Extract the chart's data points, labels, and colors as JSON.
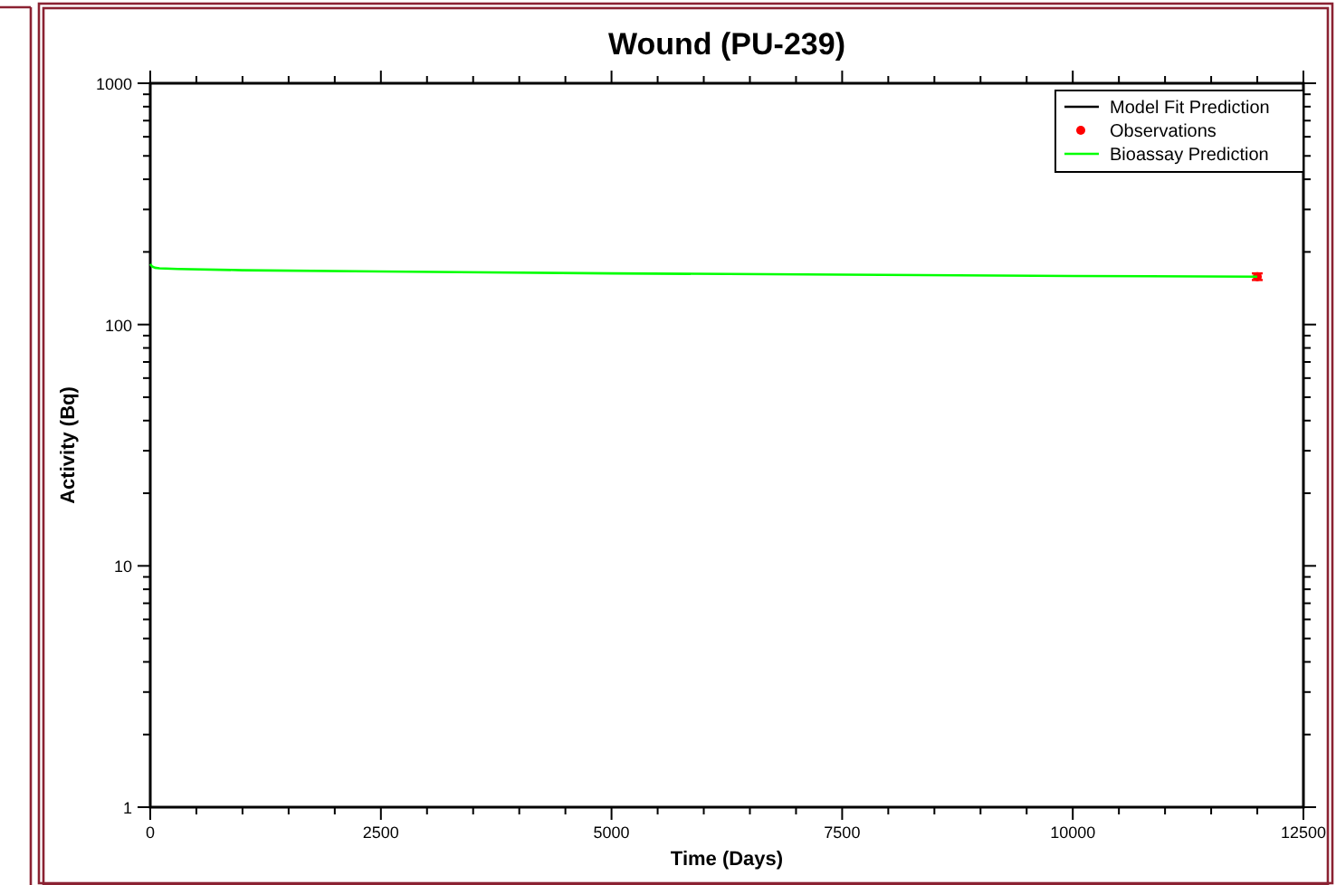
{
  "chart_data": {
    "type": "line",
    "title": "Wound  (PU-239)",
    "xlabel": "Time (Days)",
    "ylabel": "Activity (Bq)",
    "log": "y",
    "grid": false,
    "legend": "top right",
    "xlim": [
      0,
      12500
    ],
    "ylim": [
      1,
      1000
    ],
    "xticks": [
      0,
      {
        "value": 500,
        "label": null
      },
      {
        "value": 1000,
        "label": null
      },
      {
        "value": 1500,
        "label": null
      },
      {
        "value": 2000,
        "label": null
      },
      2500,
      {
        "value": 3000,
        "label": null
      },
      {
        "value": 3500,
        "label": null
      },
      {
        "value": 4000,
        "label": null
      },
      {
        "value": 4500,
        "label": null
      },
      5000,
      {
        "value": 5500,
        "label": null
      },
      {
        "value": 6000,
        "label": null
      },
      {
        "value": 6500,
        "label": null
      },
      {
        "value": 7000,
        "label": null
      },
      7500,
      {
        "value": 8000,
        "label": null
      },
      {
        "value": 8500,
        "label": null
      },
      {
        "value": 9000,
        "label": null
      },
      {
        "value": 9500,
        "label": null
      },
      10000,
      {
        "value": 10500,
        "label": null
      },
      {
        "value": 11000,
        "label": null
      },
      {
        "value": 11500,
        "label": null
      },
      {
        "value": 12000,
        "label": null
      },
      12500
    ],
    "yticks": [
      1,
      {
        "value": 2,
        "label": null
      },
      {
        "value": 3,
        "label": null
      },
      {
        "value": 4,
        "label": null
      },
      {
        "value": 5,
        "label": null
      },
      {
        "value": 6,
        "label": null
      },
      {
        "value": 7,
        "label": null
      },
      {
        "value": 8,
        "label": null
      },
      {
        "value": 9,
        "label": null
      },
      10,
      {
        "value": 20,
        "label": null
      },
      {
        "value": 30,
        "label": null
      },
      {
        "value": 40,
        "label": null
      },
      {
        "value": 50,
        "label": null
      },
      {
        "value": 60,
        "label": null
      },
      {
        "value": 70,
        "label": null
      },
      {
        "value": 80,
        "label": null
      },
      {
        "value": 90,
        "label": null
      },
      100,
      {
        "value": 200,
        "label": null
      },
      {
        "value": 300,
        "label": null
      },
      {
        "value": 400,
        "label": null
      },
      {
        "value": 500,
        "label": null
      },
      {
        "value": 600,
        "label": null
      },
      {
        "value": 700,
        "label": null
      },
      {
        "value": 800,
        "label": null
      },
      {
        "value": 900,
        "label": null
      },
      1000
    ],
    "series": [
      {
        "name": "Model Fit Prediction",
        "type": "line",
        "color": "#000000"
      },
      {
        "name": "Observations",
        "type": "scatter",
        "color": "#ff0000",
        "marker": "circle",
        "x": [
          12000
        ],
        "values": [
          158
        ],
        "errors": [
          5
        ]
      },
      {
        "name": "Bioassay Prediction",
        "color": "#00ff00",
        "x": [
          0,
          20,
          50,
          100,
          300,
          1000,
          2500,
          5000,
          7500,
          10000,
          12000
        ],
        "values": [
          178,
          174,
          172,
          171,
          170,
          168,
          166,
          163,
          161,
          159,
          158
        ]
      }
    ]
  }
}
